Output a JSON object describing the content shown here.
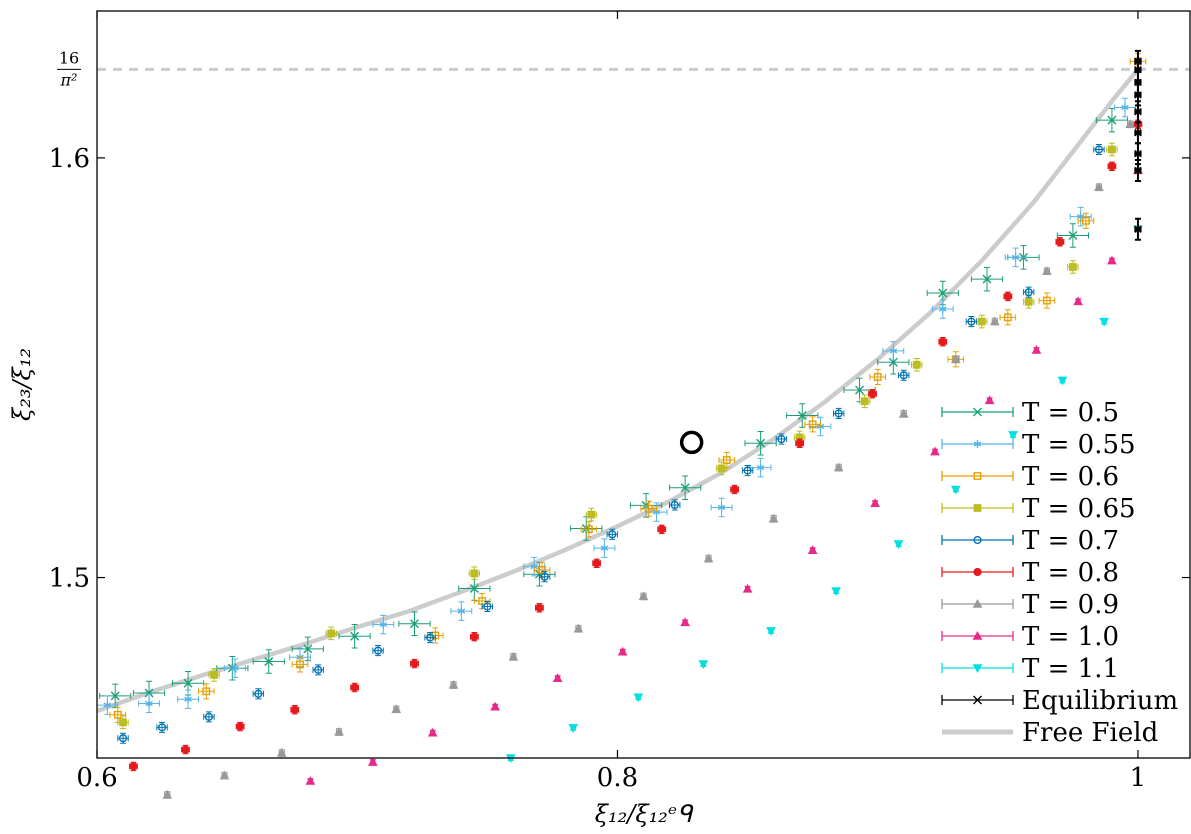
{
  "chart_data": {
    "type": "scatter",
    "title": "",
    "xlabel": "ξ₁₂/ξ₁₂ᵉᑫ",
    "ylabel": "ξ₂₃/ξ₁₂",
    "xlim": [
      0.6,
      1.02
    ],
    "ylim": [
      1.457,
      1.635
    ],
    "x_ticks": [
      {
        "value": 0.6,
        "label": "0.6"
      },
      {
        "value": 0.8,
        "label": "0.8"
      },
      {
        "value": 1.0,
        "label": "1"
      }
    ],
    "y_ticks": [
      {
        "value": 1.5,
        "label": "1.5"
      },
      {
        "value": 1.6,
        "label": "1.6"
      },
      {
        "value": 1.6211,
        "label": "16/π²"
      }
    ],
    "reference_line": {
      "y": 1.6211,
      "label_num": "16",
      "label_den": "π²",
      "style": "dashed",
      "color": "#cccccc"
    },
    "legend_position": "bottom-right",
    "grid": false,
    "free_field": {
      "name": "Free Field",
      "color": "#cccccc",
      "x": [
        0.6,
        0.62,
        0.64,
        0.66,
        0.68,
        0.7,
        0.72,
        0.74,
        0.76,
        0.78,
        0.8,
        0.82,
        0.84,
        0.86,
        0.88,
        0.9,
        0.92,
        0.94,
        0.96,
        0.97,
        0.98,
        0.99,
        1.0
      ],
      "y": [
        1.4682,
        1.4726,
        1.4766,
        1.4804,
        1.4842,
        1.4882,
        1.492,
        1.4966,
        1.5014,
        1.5066,
        1.5122,
        1.5182,
        1.525,
        1.533,
        1.542,
        1.552,
        1.563,
        1.5755,
        1.5895,
        1.5975,
        1.6055,
        1.6135,
        1.6211
      ]
    },
    "series": [
      {
        "name": "T = 0.5",
        "color": "#1b9e77",
        "marker": "x",
        "x": [
          0.607,
          0.62,
          0.635,
          0.652,
          0.666,
          0.681,
          0.699,
          0.722,
          0.745,
          0.77,
          0.788,
          0.811,
          0.826,
          0.855,
          0.871,
          0.893,
          0.906,
          0.925,
          0.942,
          0.956,
          0.975,
          0.99
        ],
        "y": [
          1.4718,
          1.4725,
          1.4748,
          1.4784,
          1.48,
          1.483,
          1.486,
          1.489,
          1.4974,
          1.5008,
          1.5117,
          1.5172,
          1.5214,
          1.532,
          1.5386,
          1.5447,
          1.5513,
          1.5678,
          1.5711,
          1.5763,
          1.5815,
          1.609
        ],
        "xerr": 0.006,
        "yerr": 0.0028
      },
      {
        "name": "T = 0.55",
        "color": "#56b4e9",
        "marker": "star",
        "x": [
          0.604,
          0.62,
          0.635,
          0.653,
          0.678,
          0.71,
          0.74,
          0.768,
          0.795,
          0.815,
          0.84,
          0.855,
          0.878,
          0.906,
          0.925,
          0.953,
          0.978,
          0.995
        ],
        "y": [
          1.4696,
          1.47,
          1.471,
          1.4784,
          1.481,
          1.4888,
          1.492,
          1.5026,
          1.507,
          1.5156,
          1.5167,
          1.5262,
          1.536,
          1.554,
          1.564,
          1.5763,
          1.586,
          1.612
        ],
        "xerr": 0.004,
        "yerr": 0.0022
      },
      {
        "name": "T = 0.6",
        "color": "#e69f00",
        "marker": "square-open",
        "x": [
          0.608,
          0.642,
          0.678,
          0.73,
          0.748,
          0.771,
          0.789,
          0.812,
          0.842,
          0.875,
          0.9,
          0.93,
          0.95,
          0.965,
          0.98,
          1.0
        ],
        "y": [
          1.4673,
          1.4729,
          1.4793,
          1.4862,
          1.4944,
          1.5018,
          1.5115,
          1.5164,
          1.528,
          1.5365,
          1.5478,
          1.552,
          1.562,
          1.566,
          1.585,
          1.623
        ],
        "xerr": 0.003,
        "yerr": 0.0018
      },
      {
        "name": "T = 0.65",
        "color": "#bcbd22",
        "marker": "square-filled",
        "x": [
          0.61,
          0.645,
          0.69,
          0.745,
          0.79,
          0.84,
          0.87,
          0.895,
          0.915,
          0.94,
          0.958,
          0.975,
          0.99
        ],
        "y": [
          1.4655,
          1.4768,
          1.4867,
          1.501,
          1.515,
          1.526,
          1.5334,
          1.542,
          1.5507,
          1.561,
          1.5657,
          1.574,
          1.602
        ],
        "xerr": 0.002,
        "yerr": 0.0015
      },
      {
        "name": "T = 0.7",
        "color": "#0072b2",
        "marker": "circle-open",
        "x": [
          0.61,
          0.625,
          0.643,
          0.662,
          0.685,
          0.708,
          0.728,
          0.75,
          0.772,
          0.798,
          0.822,
          0.85,
          0.863,
          0.885,
          0.91,
          0.936,
          0.958,
          0.985
        ],
        "y": [
          1.4617,
          1.4643,
          1.4668,
          1.4723,
          1.478,
          1.4826,
          1.4857,
          1.4931,
          1.5002,
          1.5103,
          1.5173,
          1.5255,
          1.533,
          1.5391,
          1.5482,
          1.561,
          1.568,
          1.602
        ],
        "xerr": 0.002,
        "yerr": 0.0012
      },
      {
        "name": "T = 0.8",
        "color": "#e41a1c",
        "marker": "circle-filled",
        "x": [
          0.614,
          0.634,
          0.655,
          0.676,
          0.699,
          0.722,
          0.745,
          0.77,
          0.792,
          0.817,
          0.845,
          0.87,
          0.898,
          0.925,
          0.95,
          0.97,
          0.99,
          1.0
        ],
        "y": [
          1.455,
          1.459,
          1.4645,
          1.4685,
          1.4738,
          1.4795,
          1.4859,
          1.4928,
          1.5034,
          1.5115,
          1.521,
          1.532,
          1.5438,
          1.5562,
          1.567,
          1.58,
          1.598,
          1.608
        ],
        "xerr": 0.0015,
        "yerr": 0.001
      },
      {
        "name": "T = 0.9",
        "color": "#999999",
        "marker": "triangle-up",
        "x": [
          0.627,
          0.649,
          0.671,
          0.693,
          0.715,
          0.737,
          0.76,
          0.785,
          0.81,
          0.835,
          0.86,
          0.885,
          0.91,
          0.93,
          0.945,
          0.965,
          0.985,
          0.997
        ],
        "y": [
          1.4482,
          1.4528,
          1.4582,
          1.4632,
          1.4686,
          1.4744,
          1.4811,
          1.4878,
          1.4955,
          1.5045,
          1.514,
          1.5262,
          1.539,
          1.552,
          1.561,
          1.573,
          1.593,
          1.608
        ],
        "xerr": 0.001,
        "yerr": 0.0008
      },
      {
        "name": "T = 1.0",
        "color": "#e7298a",
        "marker": "triangle-up",
        "x": [
          0.682,
          0.706,
          0.729,
          0.753,
          0.777,
          0.802,
          0.826,
          0.85,
          0.875,
          0.899,
          0.922,
          0.943,
          0.961,
          0.977,
          0.99,
          1.0
        ],
        "y": [
          1.4515,
          1.456,
          1.463,
          1.4692,
          1.476,
          1.4823,
          1.4893,
          1.4973,
          1.5065,
          1.5177,
          1.53,
          1.5422,
          1.5542,
          1.5658,
          1.5755,
          1.597
        ],
        "xerr": 0.0008,
        "yerr": 0.0006
      },
      {
        "name": "T = 1.1",
        "color": "#00e0e0",
        "marker": "triangle-down",
        "x": [
          0.759,
          0.783,
          0.808,
          0.833,
          0.859,
          0.884,
          0.908,
          0.93,
          0.952,
          0.971,
          0.987,
          1.0
        ],
        "y": [
          1.457,
          1.4642,
          1.4715,
          1.4794,
          1.4873,
          1.4968,
          1.508,
          1.521,
          1.534,
          1.547,
          1.561,
          1.583
        ],
        "xerr": 0.0008,
        "yerr": 0.0006
      },
      {
        "name": "Equilibrium",
        "color": "#000000",
        "marker": "x",
        "x": [
          1.0,
          1.0,
          1.0,
          1.0,
          1.0,
          1.0,
          1.0,
          1.0,
          1.0
        ],
        "y": [
          1.623,
          1.621,
          1.618,
          1.615,
          1.611,
          1.606,
          1.601,
          1.597,
          1.583
        ],
        "xerr": 0.001,
        "yerr": 0.0025
      }
    ],
    "highlight": {
      "x": 0.8285,
      "y": 1.5322,
      "label": ""
    }
  }
}
